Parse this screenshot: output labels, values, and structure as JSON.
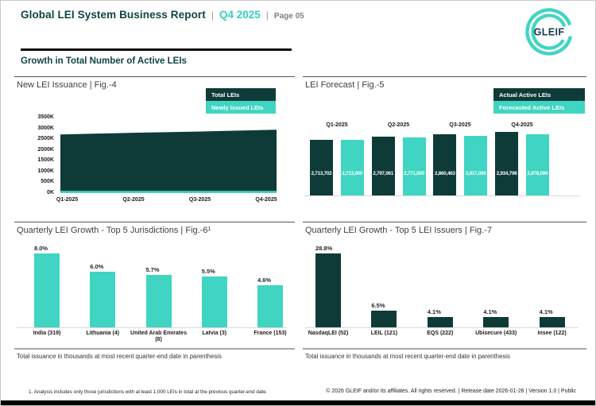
{
  "page": {
    "header": {
      "title": "Global LEI System Business Report",
      "separator": "|",
      "period": "Q4 2025",
      "page_label": "Page 05",
      "logo_text": "GLEIF"
    },
    "section_title": "Growth in Total Number of Active LEIs",
    "footnote": "1. Analysis includes only those jurisdictions with at least 1,000 LEIs in total at the previous quarter-end date.",
    "copyright": "© 2026 GLEIF and/or its affiliates. All rights reserved. | Release date 2026-01-26 | Version 1.0 | Public"
  },
  "colors": {
    "dark_teal": "#0e3b38",
    "turquoise": "#3fd5c2",
    "heading_teal": "#0e4540",
    "rule_gray": "#a6a6a6"
  },
  "chart_data": [
    {
      "type": "area",
      "title": "New LEI Issuance | Fig.-4",
      "x": [
        "Q1-2025",
        "Q2-2025",
        "Q3-2025",
        "Q4-2025"
      ],
      "y_axis": {
        "ticks": [
          "3500K",
          "3000K",
          "2500K",
          "2000K",
          "1500K",
          "1000K",
          "500K",
          "0K"
        ],
        "min": 0,
        "max": 3500000
      },
      "legend_position": "top-right",
      "series": [
        {
          "name": "Total LEIs",
          "color": "#0e3b38",
          "values": [
            2713702,
            2797061,
            2860463,
            2934798
          ]
        },
        {
          "name": "Newly Issued LEIs",
          "color": "#3fd5c2",
          "estimated": true,
          "values": [
            100000,
            100000,
            100000,
            100000
          ]
        }
      ]
    },
    {
      "type": "bar",
      "title": "LEI Forecast | Fig.-5",
      "categories": [
        "Q1-2025",
        "Q2-2025",
        "Q3-2025",
        "Q4-2025"
      ],
      "category_label_position": "above",
      "legend_position": "top-right",
      "value_label_style": "inside-white",
      "series": [
        {
          "name": "Actual Active LEIs",
          "color": "#0e3b38",
          "values": [
            2713702,
            2797061,
            2860463,
            2934798
          ],
          "labels": [
            "2,713,702",
            "2,797,061",
            "2,860,463",
            "2,934,798"
          ]
        },
        {
          "name": "Forecasted Active LEIs",
          "color": "#3fd5c2",
          "values": [
            2713000,
            2771000,
            2817000,
            2878000
          ],
          "labels": [
            "2,713,000",
            "2,771,000",
            "2,817,000",
            "2,878,000"
          ]
        }
      ]
    },
    {
      "type": "bar",
      "title": "Quarterly LEI Growth - Top 5 Jurisdictions | Fig.-6¹",
      "bar_color": "#3fd5c2",
      "categories": [
        "India (319)",
        "Lithuania (4)",
        "United Arab Emirates (8)",
        "Latvia (3)",
        "France (153)"
      ],
      "values": [
        8.0,
        6.0,
        5.7,
        5.5,
        4.6
      ],
      "value_labels": [
        "8.0%",
        "6.0%",
        "5.7%",
        "5.5%",
        "4.6%"
      ],
      "note": "Total issuance in thousands at most recent quarter-end date in parenthesis"
    },
    {
      "type": "bar",
      "title": "Quarterly LEI Growth - Top 5 LEI Issuers | Fig.-7",
      "bar_color": "#0e3b38",
      "categories": [
        "NasdaqLEI (52)",
        "LEIL (121)",
        "EQS (222)",
        "Ubisecure (433)",
        "Insee (122)"
      ],
      "values": [
        28.8,
        6.5,
        4.1,
        4.1,
        4.1
      ],
      "value_labels": [
        "28.8%",
        "6.5%",
        "4.1%",
        "4.1%",
        "4.1%"
      ],
      "note": "Total issuance in thousands at most recent quarter-end date in parenthesis"
    }
  ]
}
